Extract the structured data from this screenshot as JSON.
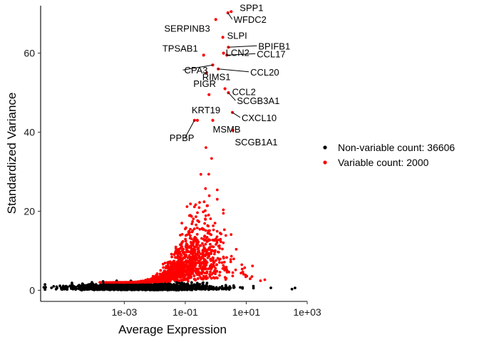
{
  "chart_data": {
    "type": "scatter",
    "xlabel": "Average Expression",
    "ylabel": "Standardized Variance",
    "xscale": "log10",
    "xlim": [
      1.8e-06,
      1000
    ],
    "ylim": [
      -2.8,
      72
    ],
    "x_ticks": [
      {
        "value": 0.001,
        "label": "1e-03"
      },
      {
        "value": 0.1,
        "label": "1e-01"
      },
      {
        "value": 10,
        "label": "1e+01"
      },
      {
        "value": 1000,
        "label": "1e+03"
      }
    ],
    "y_ticks": [
      {
        "value": 0,
        "label": "0"
      },
      {
        "value": 20,
        "label": "20"
      },
      {
        "value": 40,
        "label": "40"
      },
      {
        "value": 60,
        "label": "60"
      }
    ],
    "grid": false,
    "legend_position": "right",
    "series": [
      {
        "name": "Non-variable count: 36606",
        "color": "#000000"
      },
      {
        "name": "Variable count: 2000",
        "color": "#ff0000"
      }
    ],
    "labeled_genes": [
      {
        "gene": "SPP1",
        "x": 3.2,
        "y": 70.5
      },
      {
        "gene": "WFDC2",
        "x": 2.5,
        "y": 70.2
      },
      {
        "gene": "SERPINB3",
        "x": 1.0,
        "y": 68.5
      },
      {
        "gene": "SLPI",
        "x": 1.7,
        "y": 64.0
      },
      {
        "gene": "BPIFB1",
        "x": 2.6,
        "y": 61.5
      },
      {
        "gene": "TPSAB1",
        "x": 0.4,
        "y": 59.5
      },
      {
        "gene": "LCN2",
        "x": 1.8,
        "y": 60.0
      },
      {
        "gene": "CCL17",
        "x": 2.3,
        "y": 59.5
      },
      {
        "gene": "CPA3",
        "x": 0.8,
        "y": 57.0
      },
      {
        "gene": "RIMS1",
        "x": 0.5,
        "y": 55.0
      },
      {
        "gene": "CCL20",
        "x": 1.2,
        "y": 56.0
      },
      {
        "gene": "PIGR",
        "x": 0.6,
        "y": 49.5
      },
      {
        "gene": "CCL2",
        "x": 2.0,
        "y": 51.0
      },
      {
        "gene": "SCGB3A1",
        "x": 2.6,
        "y": 50.0
      },
      {
        "gene": "KRT19",
        "x": 0.25,
        "y": 43.0
      },
      {
        "gene": "CXCL10",
        "x": 3.5,
        "y": 45.0
      },
      {
        "gene": "MSMB",
        "x": 0.8,
        "y": 43.0
      },
      {
        "gene": "PPBP",
        "x": 0.2,
        "y": 43.0
      },
      {
        "gene": "SCGB1A1",
        "x": 3.6,
        "y": 40.5
      }
    ]
  }
}
